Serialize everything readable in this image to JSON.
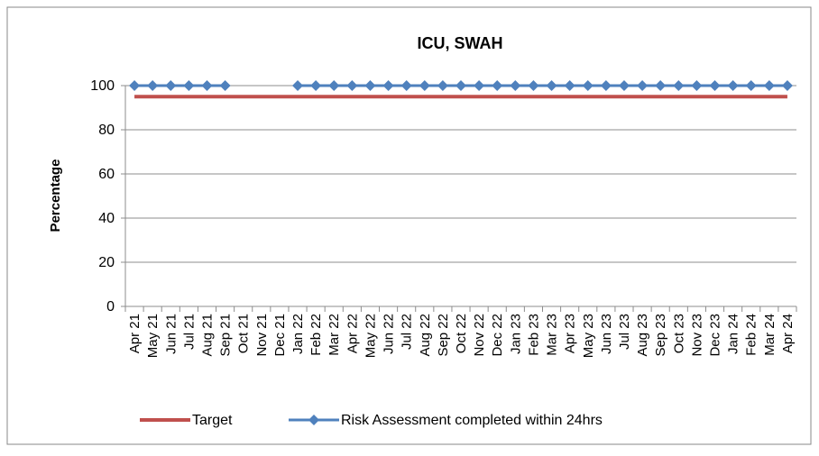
{
  "chart_data": {
    "type": "line",
    "title": "ICU, SWAH",
    "y_label": "Percentage",
    "categories": [
      "Apr 21",
      "May 21",
      "Jun 21",
      "Jul 21",
      "Aug 21",
      "Sep 21",
      "Oct 21",
      "Nov 21",
      "Dec 21",
      "Jan 22",
      "Feb 22",
      "Mar 22",
      "Apr 22",
      "May 22",
      "Jun 22",
      "Jul 22",
      "Aug 22",
      "Sep 22",
      "Oct 22",
      "Nov 22",
      "Dec 22",
      "Jan 23",
      "Feb 23",
      "Mar 23",
      "Apr 23",
      "May 23",
      "Jun 23",
      "Jul 23",
      "Aug 23",
      "Sep 23",
      "Oct 23",
      "Nov 23",
      "Dec 23",
      "Jan 24",
      "Feb 24",
      "Mar 24",
      "Apr 24"
    ],
    "series": [
      {
        "name": "Target",
        "color": "#c0504d",
        "values": [
          95,
          95,
          95,
          95,
          95,
          95,
          95,
          95,
          95,
          95,
          95,
          95,
          95,
          95,
          95,
          95,
          95,
          95,
          95,
          95,
          95,
          95,
          95,
          95,
          95,
          95,
          95,
          95,
          95,
          95,
          95,
          95,
          95,
          95,
          95,
          95,
          95
        ]
      },
      {
        "name": "Risk Assessment completed within 24hrs",
        "color": "#4f81bd",
        "marker": "diamond",
        "values": [
          100,
          100,
          100,
          100,
          100,
          100,
          null,
          null,
          null,
          100,
          100,
          100,
          100,
          100,
          100,
          100,
          100,
          100,
          100,
          100,
          100,
          100,
          100,
          100,
          100,
          100,
          100,
          100,
          100,
          100,
          100,
          100,
          100,
          100,
          100,
          100,
          100
        ]
      }
    ],
    "ylim": [
      0,
      100
    ],
    "yticks": [
      0,
      20,
      40,
      60,
      80,
      100
    ],
    "grid": true,
    "legend": "bottom"
  }
}
